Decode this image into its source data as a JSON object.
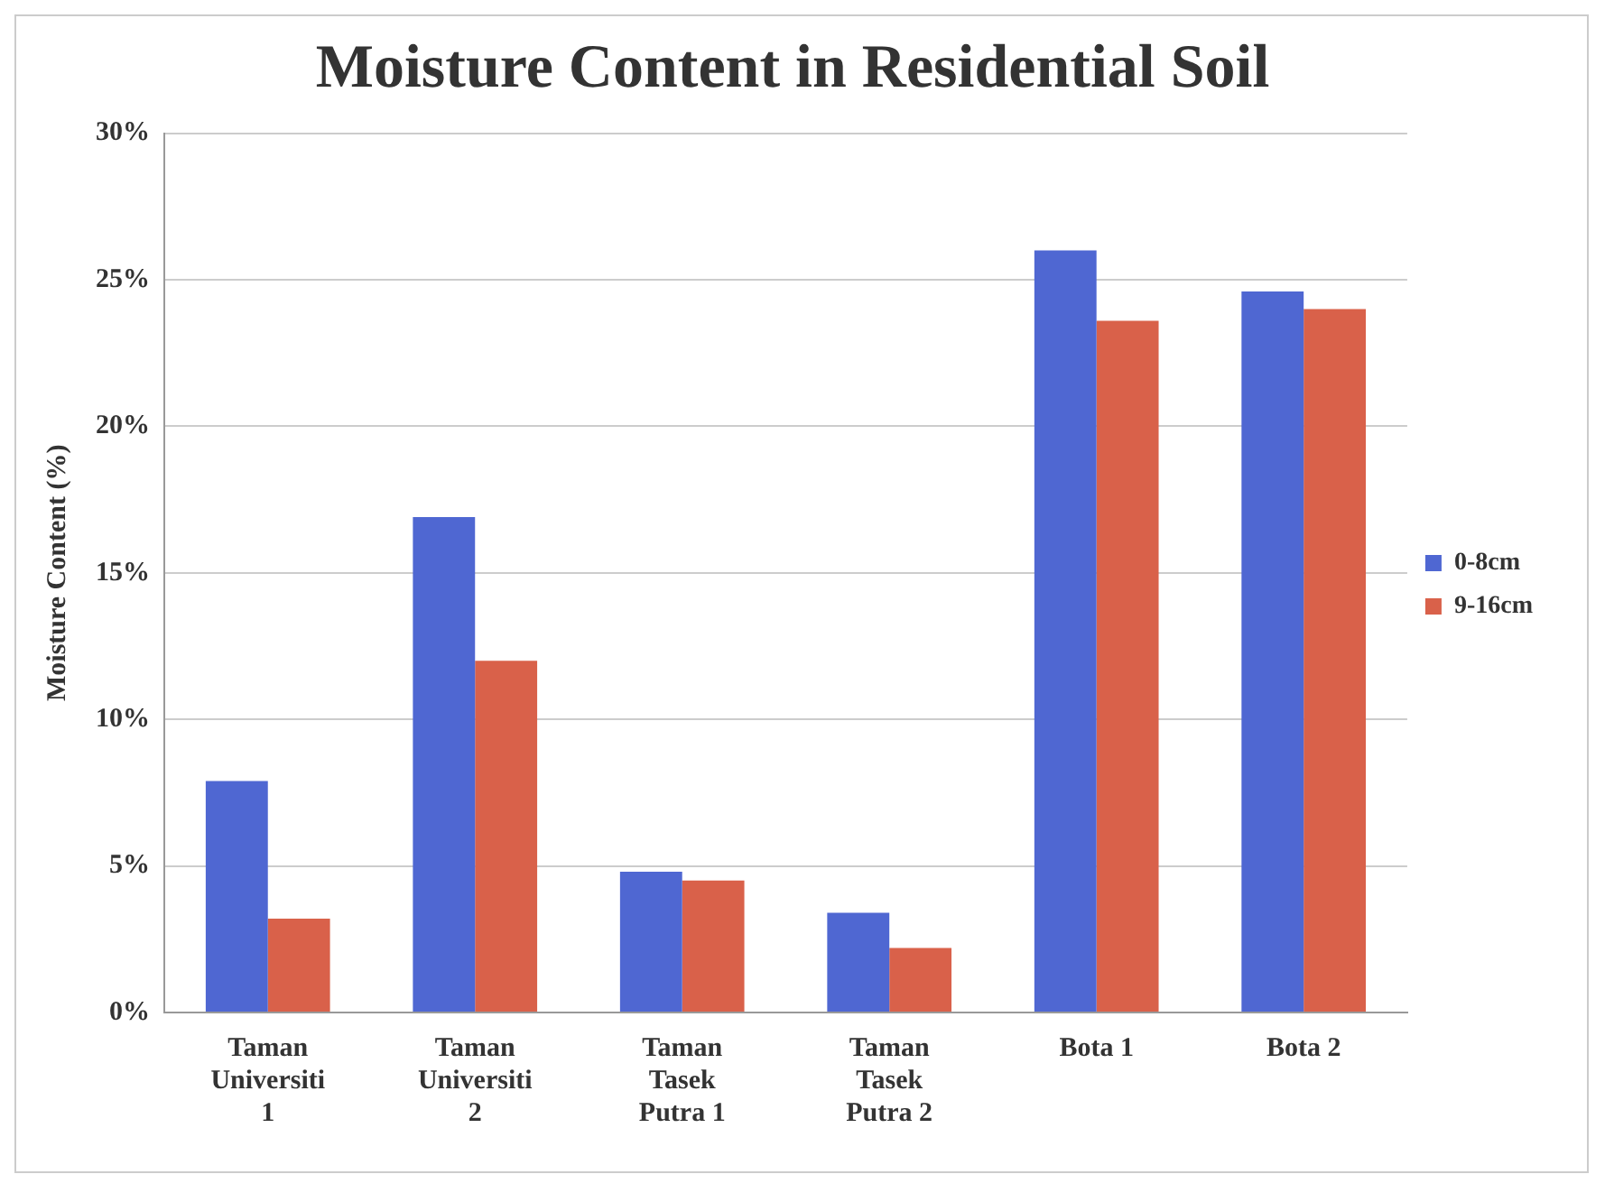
{
  "chart_data": {
    "type": "bar",
    "title": "Moisture Content in Residential Soil",
    "ylabel": "Moisture Content (%)",
    "categories": [
      "Taman Universiti 1",
      "Taman Universiti 2",
      "Taman Tasek Putra 1",
      "Taman Tasek Putra 2",
      "Bota 1",
      "Bota 2"
    ],
    "series": [
      {
        "name": "0-8cm",
        "color": "#4f67d2",
        "values": [
          7.9,
          16.9,
          4.8,
          3.4,
          26.0,
          24.6
        ]
      },
      {
        "name": "9-16cm",
        "color": "#d9614a",
        "values": [
          3.2,
          12.0,
          4.5,
          2.2,
          23.6,
          24.0
        ]
      }
    ],
    "ylim": [
      0,
      30
    ],
    "yticks": [
      {
        "value": 0,
        "label": "0%"
      },
      {
        "value": 5,
        "label": "5%"
      },
      {
        "value": 10,
        "label": "10%"
      },
      {
        "value": 15,
        "label": "15%"
      },
      {
        "value": 20,
        "label": "20%"
      },
      {
        "value": 25,
        "label": "25%"
      },
      {
        "value": 30,
        "label": "30%"
      }
    ],
    "grid": "y",
    "legend": "right"
  }
}
